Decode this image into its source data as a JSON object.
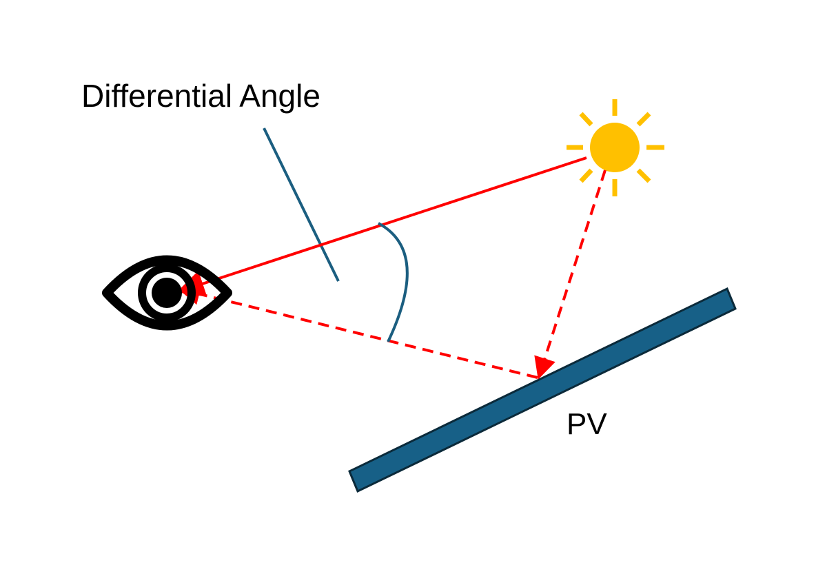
{
  "diagram": {
    "title_label": "Differential Angle",
    "panel_label": "PV",
    "icons": {
      "observer": "eye-icon",
      "source": "sun-icon"
    },
    "colors": {
      "background": "#ffffff",
      "ray": "#ff0000",
      "panel_fill": "#176087",
      "panel_stroke": "#0b2a3a",
      "angle_arc": "#1b5e80",
      "sun": "#ffc000",
      "eye": "#000000"
    }
  }
}
